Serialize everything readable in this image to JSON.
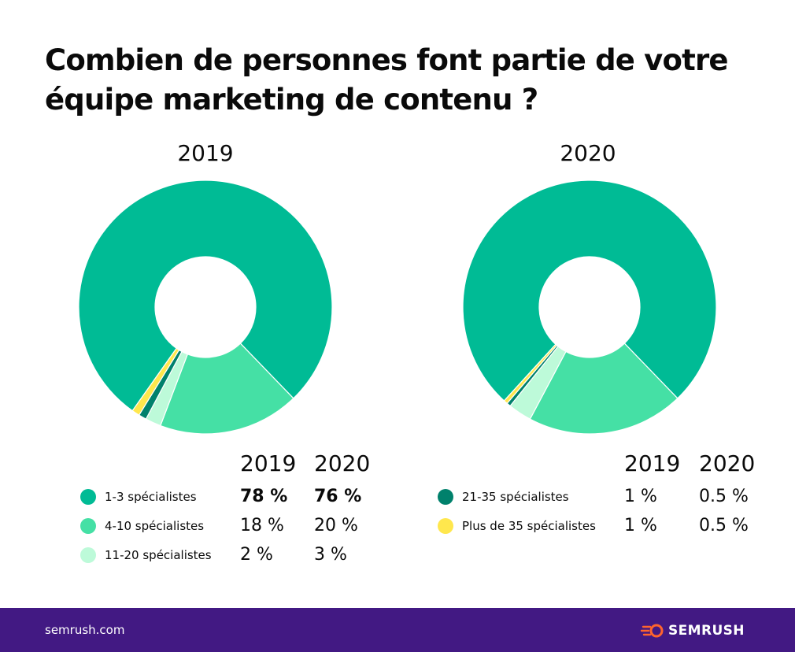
{
  "title_line1": "Combien de personnes font partie de votre",
  "title_line2": "équipe marketing de contenu ?",
  "footer": {
    "site": "semrush.com",
    "brand": "SEMRUSH"
  },
  "colors": {
    "c13": "#00BB95",
    "c410": "#45E0A5",
    "c1120": "#BDFAD9",
    "c2135": "#00816C",
    "c35": "#FFE74D",
    "footer": "#421983"
  },
  "chart_data": {
    "type": "pie",
    "variant": "donut",
    "title": "Combien de personnes font partie de votre équipe marketing de contenu ?",
    "years": [
      "2019",
      "2020"
    ],
    "categories": [
      "1-3 spécialistes",
      "4-10 spécialistes",
      "11-20 spécialistes",
      "21-35 spécialistes",
      "Plus de 35 spécialistes"
    ],
    "series": [
      {
        "name": "2019",
        "values": [
          78,
          18,
          2,
          1,
          1
        ],
        "labels": [
          "78 %",
          "18 %",
          "2 %",
          "1 %",
          "1 %"
        ]
      },
      {
        "name": "2020",
        "values": [
          76,
          20,
          3,
          0.5,
          0.5
        ],
        "labels": [
          "76 %",
          "20 %",
          "3 %",
          "0.5 %",
          "0.5 %"
        ]
      }
    ],
    "legend_placement": "bottom"
  }
}
